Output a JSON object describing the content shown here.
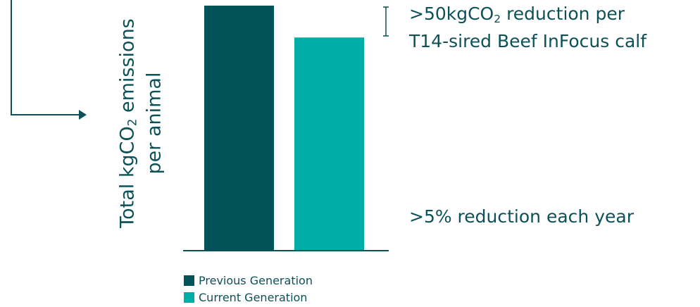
{
  "colors": {
    "previous": "#03525a",
    "current": "#00aea7",
    "text": "#0b5157"
  },
  "chart_data": {
    "type": "bar",
    "categories": [
      "Previous Generation",
      "Current Generation"
    ],
    "values": [
      100,
      87
    ],
    "ylabel_line1_a": "Total kgCO",
    "ylabel_line1_sub": "2",
    "ylabel_line1_b": " emissions",
    "ylabel_line2": "per animal",
    "ylim": [
      0,
      100
    ],
    "grid": false,
    "legend_position": "bottom-left"
  },
  "annotations": {
    "top_line1_a": ">50kgCO",
    "top_line1_sub": "2",
    "top_line1_b": " reduction per",
    "top_line2": "T14-sired Beef InFocus calf",
    "bottom": ">5% reduction each year"
  },
  "legend": {
    "previous_label": "Previous Generation",
    "current_label": "Current Generation"
  }
}
